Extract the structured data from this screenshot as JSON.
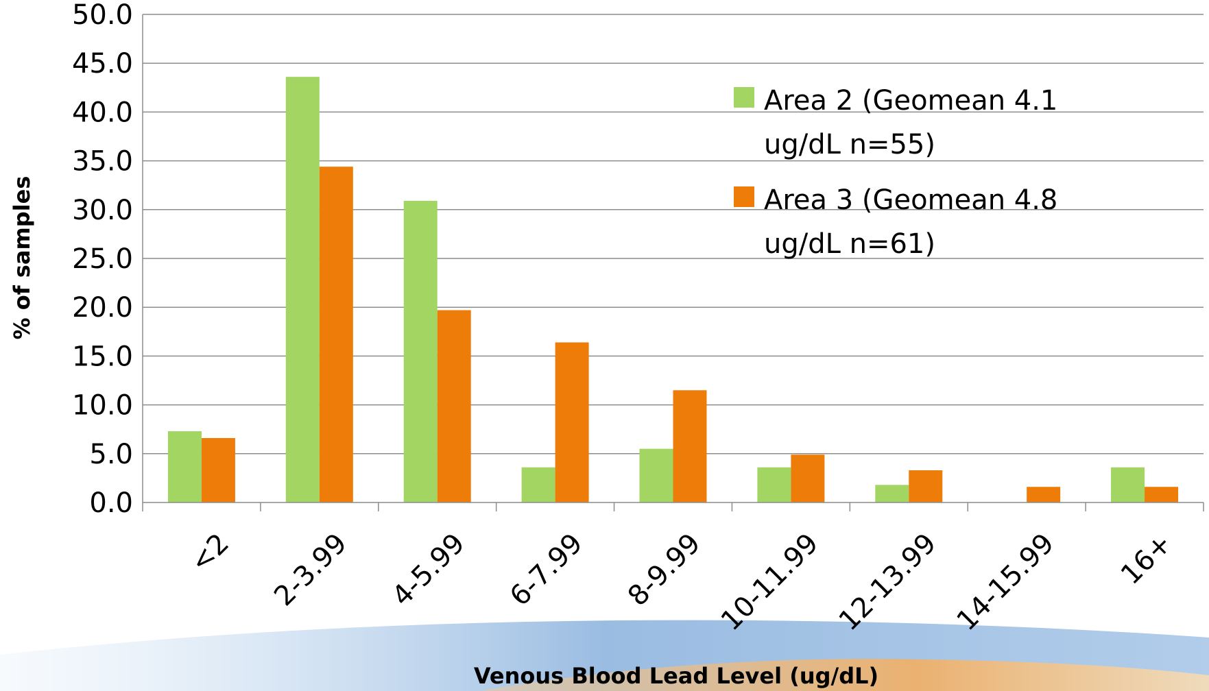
{
  "chart_data": {
    "type": "bar",
    "title": "",
    "xlabel": "Venous Blood Lead Level (ug/dL)",
    "ylabel": "% of samples",
    "ylim": [
      0,
      50
    ],
    "yticks": [
      "0.0",
      "5.0",
      "10.0",
      "15.0",
      "20.0",
      "25.0",
      "30.0",
      "35.0",
      "40.0",
      "45.0",
      "50.0"
    ],
    "grid": true,
    "legend_position": "top-right",
    "categories": [
      "<2",
      "2-3.99",
      "4-5.99",
      "6-7.99",
      "8-9.99",
      "10-11.99",
      "12-13.99",
      "14-15.99",
      "16+"
    ],
    "series": [
      {
        "name": "Area 2 (Geomean 4.1 ug/dL n=55)",
        "legend_lines": [
          "Area 2 (Geomean 4.1",
          "ug/dL n=55)"
        ],
        "color": "#a3d563",
        "values": [
          7.3,
          43.6,
          30.9,
          3.6,
          5.5,
          3.6,
          1.8,
          0,
          3.6
        ]
      },
      {
        "name": "Area 3 (Geomean 4.8 ug/dL n=61)",
        "legend_lines": [
          "Area 3 (Geomean 4.8",
          "ug/dL n=61)"
        ],
        "color": "#ed7d08",
        "values": [
          6.6,
          34.4,
          19.7,
          16.4,
          11.5,
          4.9,
          3.3,
          1.6,
          1.6
        ]
      }
    ]
  }
}
